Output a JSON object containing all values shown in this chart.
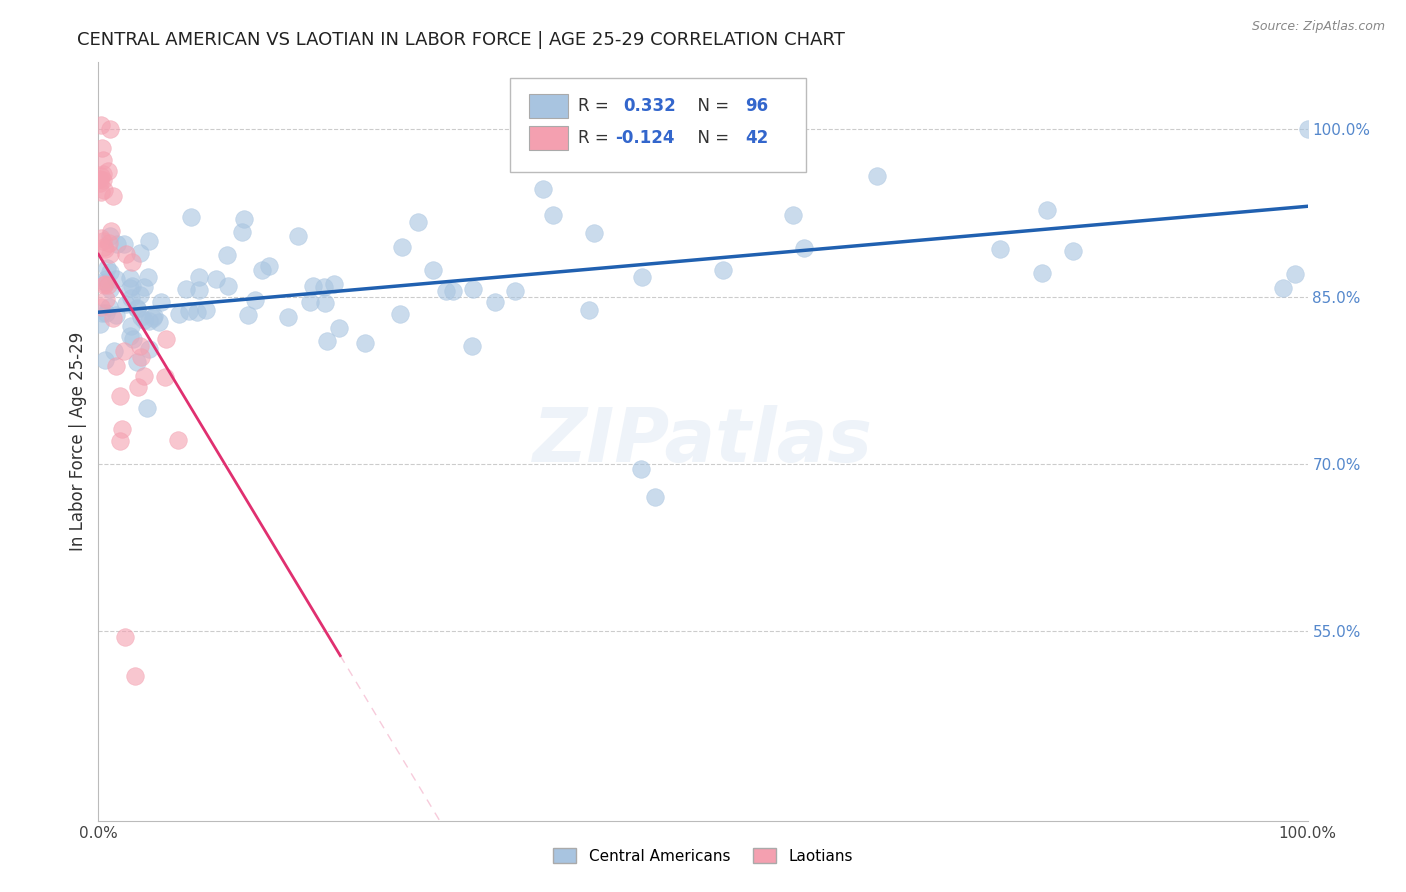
{
  "title": "CENTRAL AMERICAN VS LAOTIAN IN LABOR FORCE | AGE 25-29 CORRELATION CHART",
  "source": "Source: ZipAtlas.com",
  "ylabel": "In Labor Force | Age 25-29",
  "ylabel_right_ticks": [
    "100.0%",
    "85.0%",
    "70.0%",
    "55.0%"
  ],
  "ylabel_right_values": [
    1.0,
    0.85,
    0.7,
    0.55
  ],
  "xmin": 0.0,
  "xmax": 1.0,
  "ymin": 0.38,
  "ymax": 1.06,
  "watermark": "ZIPatlas",
  "blue_color": "#a8c4e0",
  "pink_color": "#f4a0b0",
  "blue_line_color": "#2060b0",
  "pink_line_color": "#e03070",
  "grid_color": "#cccccc",
  "blue_intercept": 0.836,
  "blue_slope": 0.095,
  "pink_intercept": 0.888,
  "pink_slope": -1.8,
  "pink_line_xmax": 0.2,
  "title_fontsize": 13,
  "source_fontsize": 9,
  "tick_fontsize": 11,
  "right_tick_color": "#5588cc"
}
